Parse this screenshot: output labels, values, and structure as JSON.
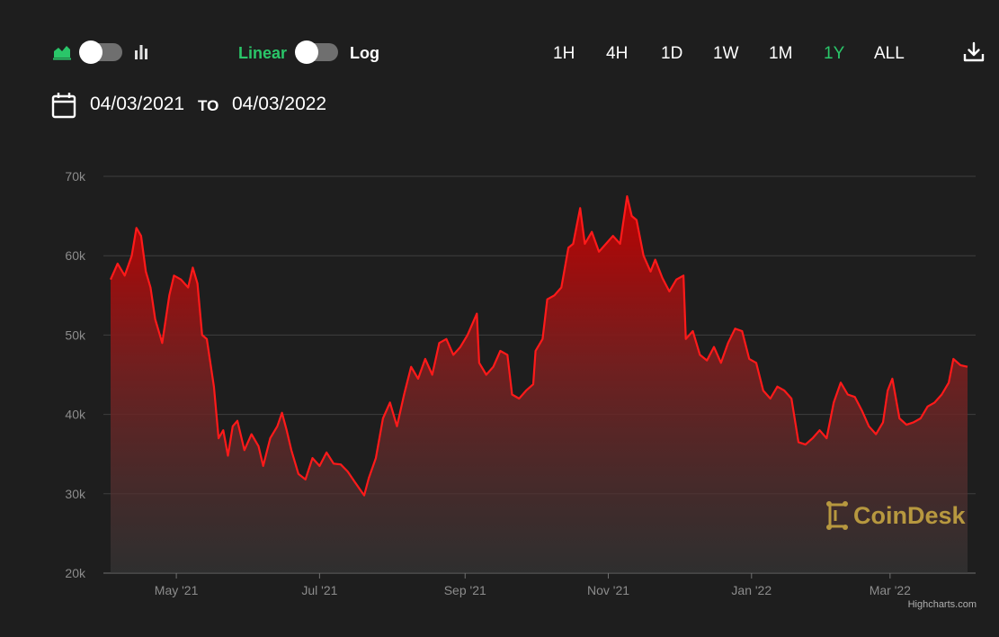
{
  "controls": {
    "chart_type_left_icon": "area-chart-icon",
    "chart_type_right_icon": "bar-chart-icon",
    "scale_linear_label": "Linear",
    "scale_log_label": "Log",
    "ranges": [
      "1H",
      "4H",
      "1D",
      "1W",
      "1M",
      "1Y",
      "ALL"
    ],
    "active_range": "1Y",
    "download_icon": "download-icon",
    "calendar_icon": "calendar-icon",
    "date_from": "04/03/2021",
    "to_label": "TO",
    "date_to": "04/03/2022",
    "accent_color": "#2ac669"
  },
  "watermark": {
    "text": "CoinDesk",
    "color": "#b7983f"
  },
  "credits": "Highcharts.com",
  "chart_data": {
    "type": "area",
    "series_color": "#ff1a1a",
    "ylim": [
      20000,
      70000
    ],
    "y_ticks": [
      20000,
      30000,
      40000,
      50000,
      60000,
      70000
    ],
    "y_tick_labels": [
      "20k",
      "30k",
      "40k",
      "50k",
      "60k",
      "70k"
    ],
    "x_range": [
      "2021-04-03",
      "2022-04-03"
    ],
    "x_tick_labels": [
      {
        "date": "2021-05-01",
        "label": "May '21"
      },
      {
        "date": "2021-07-01",
        "label": "Jul '21"
      },
      {
        "date": "2021-09-01",
        "label": "Sep '21"
      },
      {
        "date": "2021-11-01",
        "label": "Nov '21"
      },
      {
        "date": "2022-01-01",
        "label": "Jan '22"
      },
      {
        "date": "2022-03-01",
        "label": "Mar '22"
      }
    ],
    "grid": true,
    "legend": "none",
    "points": [
      [
        "2021-04-03",
        57000
      ],
      [
        "2021-04-06",
        59000
      ],
      [
        "2021-04-09",
        57500
      ],
      [
        "2021-04-12",
        60000
      ],
      [
        "2021-04-14",
        63500
      ],
      [
        "2021-04-16",
        62500
      ],
      [
        "2021-04-18",
        58000
      ],
      [
        "2021-04-20",
        56000
      ],
      [
        "2021-04-22",
        52000
      ],
      [
        "2021-04-25",
        49000
      ],
      [
        "2021-04-28",
        55000
      ],
      [
        "2021-04-30",
        57500
      ],
      [
        "2021-05-03",
        57000
      ],
      [
        "2021-05-06",
        56000
      ],
      [
        "2021-05-08",
        58500
      ],
      [
        "2021-05-10",
        56500
      ],
      [
        "2021-05-12",
        50000
      ],
      [
        "2021-05-14",
        49500
      ],
      [
        "2021-05-17",
        43500
      ],
      [
        "2021-05-19",
        37000
      ],
      [
        "2021-05-21",
        38000
      ],
      [
        "2021-05-23",
        34800
      ],
      [
        "2021-05-25",
        38500
      ],
      [
        "2021-05-27",
        39200
      ],
      [
        "2021-05-30",
        35500
      ],
      [
        "2021-06-02",
        37500
      ],
      [
        "2021-06-05",
        36000
      ],
      [
        "2021-06-07",
        33500
      ],
      [
        "2021-06-10",
        37000
      ],
      [
        "2021-06-13",
        38500
      ],
      [
        "2021-06-15",
        40200
      ],
      [
        "2021-06-17",
        38000
      ],
      [
        "2021-06-19",
        35500
      ],
      [
        "2021-06-22",
        32500
      ],
      [
        "2021-06-25",
        31800
      ],
      [
        "2021-06-28",
        34500
      ],
      [
        "2021-07-01",
        33500
      ],
      [
        "2021-07-04",
        35200
      ],
      [
        "2021-07-07",
        33800
      ],
      [
        "2021-07-10",
        33700
      ],
      [
        "2021-07-13",
        32800
      ],
      [
        "2021-07-16",
        31500
      ],
      [
        "2021-07-20",
        29800
      ],
      [
        "2021-07-22",
        32000
      ],
      [
        "2021-07-25",
        34500
      ],
      [
        "2021-07-28",
        39500
      ],
      [
        "2021-07-31",
        41500
      ],
      [
        "2021-08-03",
        38500
      ],
      [
        "2021-08-06",
        42500
      ],
      [
        "2021-08-09",
        46000
      ],
      [
        "2021-08-12",
        44500
      ],
      [
        "2021-08-15",
        47000
      ],
      [
        "2021-08-18",
        45000
      ],
      [
        "2021-08-21",
        49000
      ],
      [
        "2021-08-24",
        49500
      ],
      [
        "2021-08-27",
        47500
      ],
      [
        "2021-08-30",
        48500
      ],
      [
        "2021-09-02",
        50000
      ],
      [
        "2021-09-06",
        52700
      ],
      [
        "2021-09-07",
        46500
      ],
      [
        "2021-09-10",
        45000
      ],
      [
        "2021-09-13",
        46000
      ],
      [
        "2021-09-16",
        48000
      ],
      [
        "2021-09-19",
        47500
      ],
      [
        "2021-09-21",
        42500
      ],
      [
        "2021-09-24",
        42000
      ],
      [
        "2021-09-27",
        43000
      ],
      [
        "2021-09-30",
        43800
      ],
      [
        "2021-10-01",
        48000
      ],
      [
        "2021-10-04",
        49500
      ],
      [
        "2021-10-06",
        54500
      ],
      [
        "2021-10-09",
        55000
      ],
      [
        "2021-10-12",
        56000
      ],
      [
        "2021-10-15",
        61000
      ],
      [
        "2021-10-17",
        61500
      ],
      [
        "2021-10-20",
        66000
      ],
      [
        "2021-10-22",
        61500
      ],
      [
        "2021-10-25",
        63000
      ],
      [
        "2021-10-28",
        60500
      ],
      [
        "2021-10-31",
        61500
      ],
      [
        "2021-11-03",
        62500
      ],
      [
        "2021-11-06",
        61500
      ],
      [
        "2021-11-09",
        67500
      ],
      [
        "2021-11-11",
        65000
      ],
      [
        "2021-11-13",
        64500
      ],
      [
        "2021-11-16",
        60000
      ],
      [
        "2021-11-19",
        58000
      ],
      [
        "2021-11-21",
        59500
      ],
      [
        "2021-11-24",
        57200
      ],
      [
        "2021-11-27",
        55500
      ],
      [
        "2021-11-30",
        57000
      ],
      [
        "2021-12-03",
        57500
      ],
      [
        "2021-12-04",
        49500
      ],
      [
        "2021-12-07",
        50500
      ],
      [
        "2021-12-10",
        47500
      ],
      [
        "2021-12-13",
        46800
      ],
      [
        "2021-12-16",
        48500
      ],
      [
        "2021-12-19",
        46500
      ],
      [
        "2021-12-22",
        49000
      ],
      [
        "2021-12-25",
        50800
      ],
      [
        "2021-12-28",
        50500
      ],
      [
        "2021-12-31",
        47000
      ],
      [
        "2022-01-03",
        46500
      ],
      [
        "2022-01-06",
        43000
      ],
      [
        "2022-01-09",
        42000
      ],
      [
        "2022-01-12",
        43500
      ],
      [
        "2022-01-15",
        43000
      ],
      [
        "2022-01-18",
        42000
      ],
      [
        "2022-01-21",
        36500
      ],
      [
        "2022-01-24",
        36200
      ],
      [
        "2022-01-27",
        37000
      ],
      [
        "2022-01-30",
        38000
      ],
      [
        "2022-02-02",
        37000
      ],
      [
        "2022-02-05",
        41500
      ],
      [
        "2022-02-08",
        44000
      ],
      [
        "2022-02-11",
        42500
      ],
      [
        "2022-02-14",
        42200
      ],
      [
        "2022-02-17",
        40500
      ],
      [
        "2022-02-20",
        38500
      ],
      [
        "2022-02-23",
        37500
      ],
      [
        "2022-02-26",
        39000
      ],
      [
        "2022-02-28",
        43000
      ],
      [
        "2022-03-02",
        44500
      ],
      [
        "2022-03-05",
        39500
      ],
      [
        "2022-03-08",
        38700
      ],
      [
        "2022-03-11",
        39000
      ],
      [
        "2022-03-14",
        39500
      ],
      [
        "2022-03-17",
        41000
      ],
      [
        "2022-03-20",
        41500
      ],
      [
        "2022-03-23",
        42500
      ],
      [
        "2022-03-26",
        44000
      ],
      [
        "2022-03-28",
        47000
      ],
      [
        "2022-03-31",
        46200
      ],
      [
        "2022-04-03",
        46000
      ]
    ]
  }
}
